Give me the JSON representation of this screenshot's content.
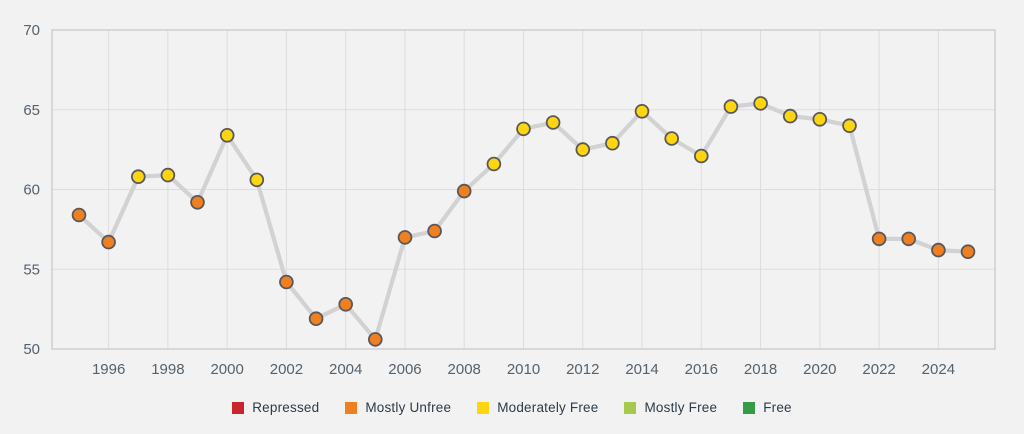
{
  "chart_data": {
    "type": "line",
    "years": [
      1995,
      1996,
      1997,
      1998,
      1999,
      2000,
      2001,
      2002,
      2003,
      2004,
      2005,
      2006,
      2007,
      2008,
      2009,
      2010,
      2011,
      2012,
      2013,
      2014,
      2015,
      2016,
      2017,
      2018,
      2019,
      2020,
      2021,
      2022,
      2023,
      2024,
      2025
    ],
    "values": [
      58.4,
      56.7,
      60.8,
      60.9,
      59.2,
      63.4,
      60.6,
      54.2,
      51.9,
      52.8,
      50.6,
      57.0,
      57.4,
      59.9,
      61.6,
      63.8,
      64.2,
      62.5,
      62.9,
      64.9,
      63.2,
      62.1,
      65.2,
      65.4,
      64.6,
      64.4,
      64.0,
      56.9,
      56.9,
      56.2,
      56.1
    ],
    "point_levels": [
      1,
      1,
      2,
      2,
      1,
      2,
      2,
      1,
      1,
      1,
      1,
      1,
      1,
      1,
      2,
      2,
      2,
      2,
      2,
      2,
      2,
      2,
      2,
      2,
      2,
      2,
      2,
      1,
      1,
      1,
      1
    ],
    "ylim": [
      50,
      70
    ],
    "yticks": [
      50,
      55,
      60,
      65,
      70
    ],
    "xticks": [
      1996,
      1998,
      2000,
      2002,
      2004,
      2006,
      2008,
      2010,
      2012,
      2014,
      2016,
      2018,
      2020,
      2022,
      2024
    ],
    "grid": true,
    "legend_position": "bottom"
  },
  "legend": {
    "items": [
      {
        "label": "Repressed",
        "color": "#c8262c",
        "icon": "repressed-swatch-icon"
      },
      {
        "label": "Mostly Unfree",
        "color": "#f0801f",
        "icon": "mostly-unfree-swatch-icon"
      },
      {
        "label": "Moderately Free",
        "color": "#fed510",
        "icon": "moderately-free-swatch-icon"
      },
      {
        "label": "Mostly Free",
        "color": "#a6c84c",
        "icon": "mostly-free-swatch-icon"
      },
      {
        "label": "Free",
        "color": "#369b46",
        "icon": "free-swatch-icon"
      }
    ]
  },
  "chart_style": {
    "background": "#f2f2f3",
    "line_color": "#d2d2d4",
    "marker_stroke": "#58585c",
    "grid_color": "#dddddf",
    "border_color": "#c6c6c8",
    "tick_label_color": "#55616c",
    "legend_text_color": "#2c3b47"
  }
}
